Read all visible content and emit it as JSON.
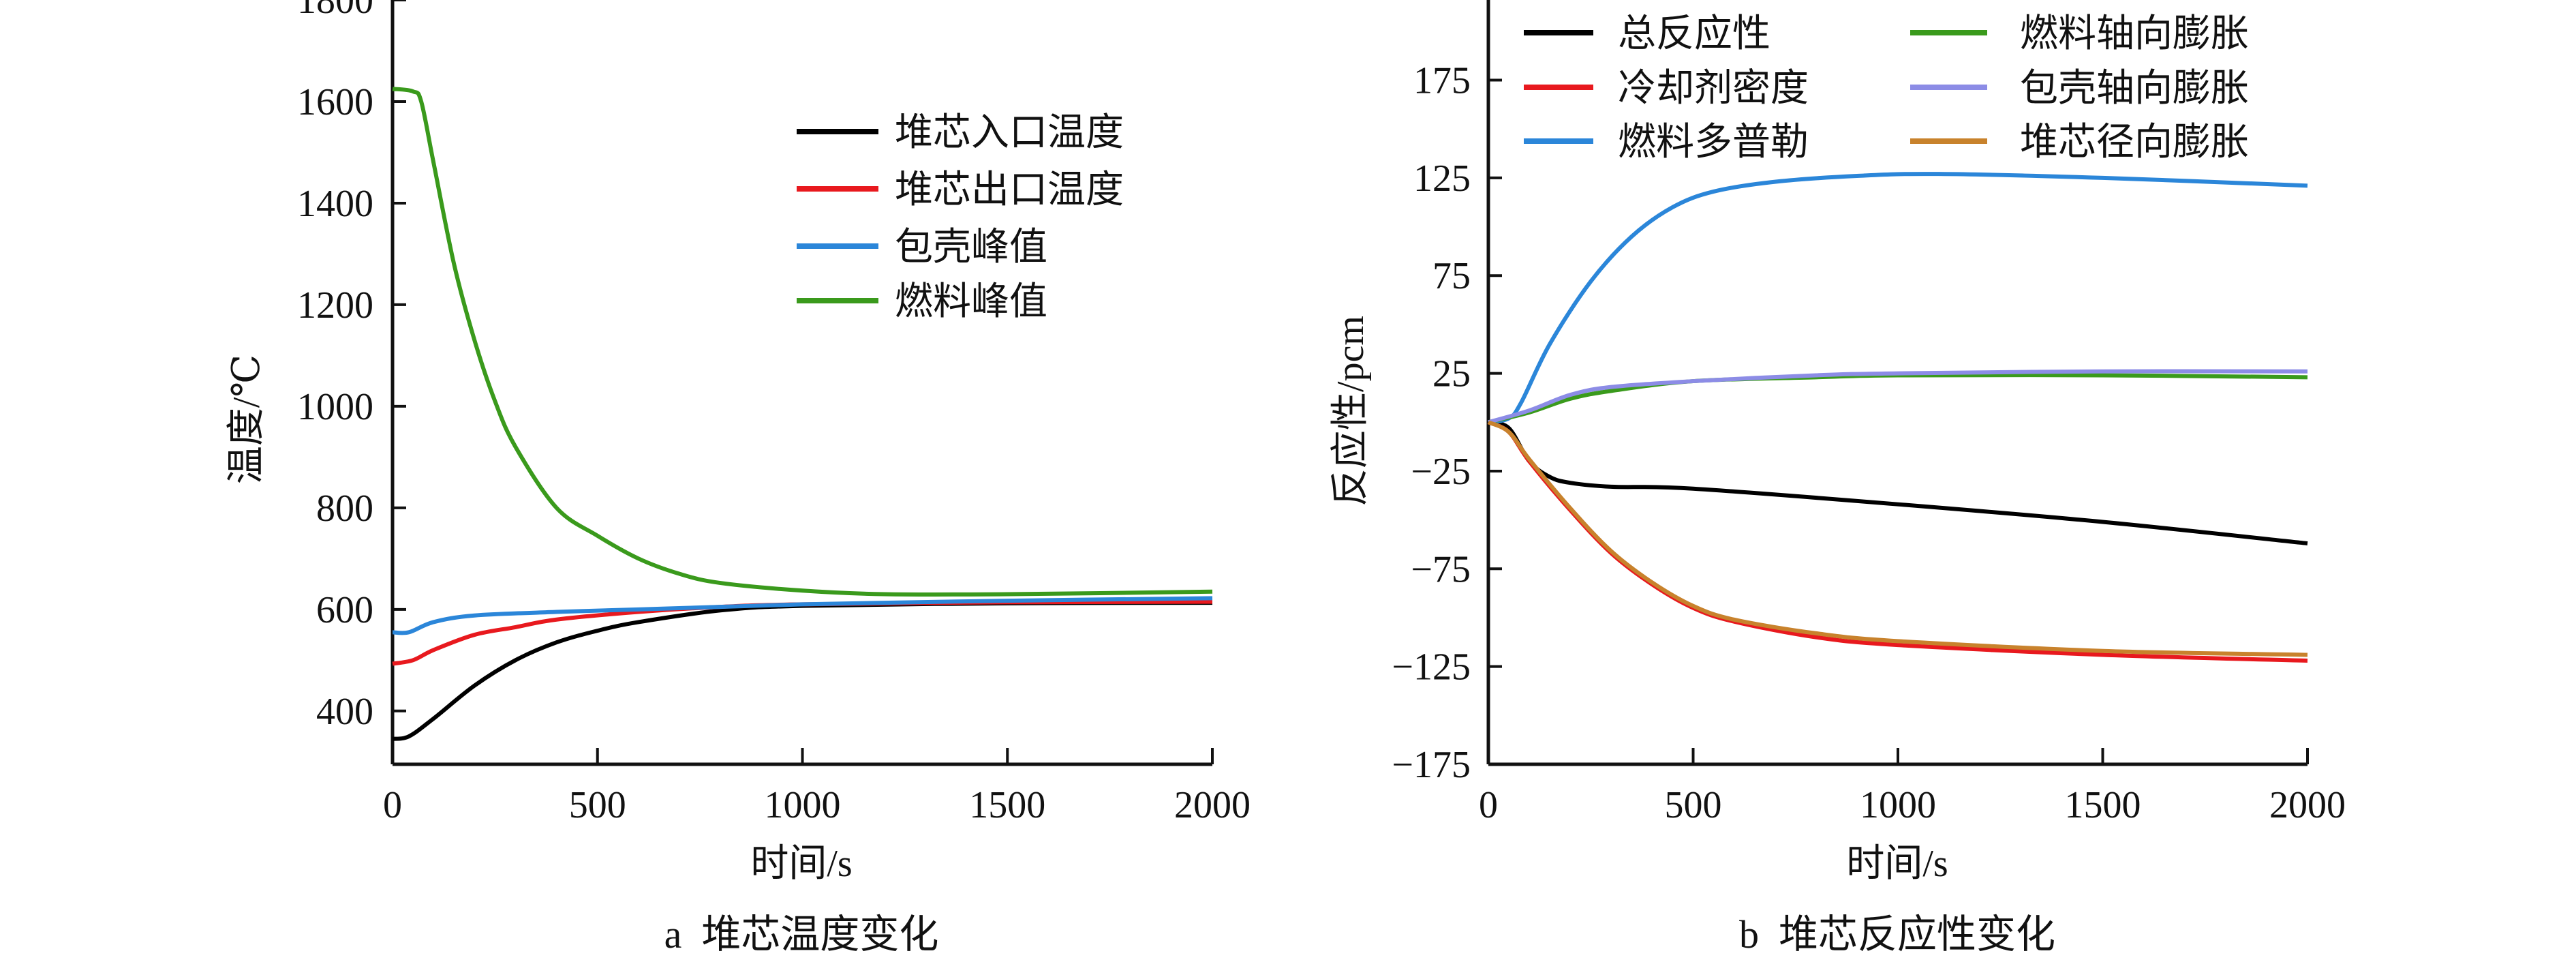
{
  "chart_data": [
    {
      "type": "line",
      "caption": "a  堆芯温度变化",
      "xlabel": "时间/s",
      "ylabel": "温度/℃",
      "xlim": [
        0,
        2000
      ],
      "ylim": [
        295,
        1800
      ],
      "xticks": [
        0,
        500,
        1000,
        1500,
        2000
      ],
      "yticks": [
        400,
        600,
        800,
        1000,
        1200,
        1400,
        1600,
        1800
      ],
      "legend_position": "top-right",
      "series": [
        {
          "name": "堆芯入口温度",
          "color": "#000000",
          "x": [
            0,
            40,
            100,
            200,
            300,
            400,
            500,
            600,
            800,
            1000,
            1500,
            2000
          ],
          "y": [
            345,
            350,
            385,
            450,
            500,
            535,
            558,
            575,
            598,
            607,
            612,
            613
          ]
        },
        {
          "name": "堆芯出口温度",
          "color": "#e8191e",
          "x": [
            0,
            50,
            100,
            200,
            300,
            400,
            600,
            800,
            1000,
            1500,
            2000
          ],
          "y": [
            493,
            500,
            520,
            550,
            565,
            580,
            595,
            605,
            610,
            614,
            615
          ]
        },
        {
          "name": "包壳峰值",
          "color": "#2b86d9",
          "x": [
            0,
            40,
            100,
            200,
            400,
            600,
            1000,
            1500,
            2000
          ],
          "y": [
            555,
            555,
            575,
            588,
            595,
            600,
            610,
            617,
            622
          ]
        },
        {
          "name": "燃料峰值",
          "color": "#3a9a1c",
          "x": [
            0,
            50,
            70,
            100,
            150,
            200,
            250,
            300,
            400,
            500,
            600,
            700,
            800,
            1000,
            1200,
            1500,
            2000
          ],
          "y": [
            1625,
            1620,
            1600,
            1480,
            1280,
            1130,
            1010,
            920,
            800,
            745,
            700,
            670,
            652,
            637,
            630,
            630,
            635
          ]
        }
      ]
    },
    {
      "type": "line",
      "caption": "b  堆芯反应性变化",
      "xlabel": "时间/s",
      "ylabel": "反应性/pcm",
      "xlim": [
        0,
        2000
      ],
      "ylim": [
        -175,
        216
      ],
      "xticks": [
        0,
        500,
        1000,
        1500,
        2000
      ],
      "yticks": [
        -175,
        -125,
        -75,
        -25,
        25,
        75,
        125,
        175
      ],
      "ytick_labels": [
        "−175",
        "−125",
        "−75",
        "−25",
        "25",
        "75",
        "125",
        "175"
      ],
      "legend_position": "top",
      "series": [
        {
          "name": "总反应性",
          "color": "#000000",
          "x": [
            0,
            50,
            100,
            150,
            200,
            300,
            500,
            1000,
            1500,
            2000
          ],
          "y": [
            0,
            -3,
            -20,
            -28,
            -31,
            -33,
            -34,
            -42,
            -51,
            -62
          ]
        },
        {
          "name": "冷却剂密度",
          "color": "#e8191e",
          "x": [
            0,
            50,
            100,
            200,
            300,
            400,
            500,
            600,
            800,
            1000,
            1500,
            2000
          ],
          "y": [
            0,
            -5,
            -20,
            -45,
            -67,
            -83,
            -95,
            -102,
            -110,
            -114,
            -119,
            -122
          ]
        },
        {
          "name": "燃料多普勒",
          "color": "#2b86d9",
          "x": [
            0,
            50,
            80,
            150,
            250,
            350,
            450,
            550,
            700,
            900,
            1100,
            1500,
            2000
          ],
          "y": [
            0,
            2,
            10,
            40,
            72,
            95,
            110,
            118,
            123,
            126,
            127,
            125,
            121
          ]
        },
        {
          "name": "燃料轴向膨胀",
          "color": "#3a9a1c",
          "x": [
            0,
            100,
            200,
            300,
            500,
            800,
            1000,
            1500,
            2000
          ],
          "y": [
            0,
            5,
            12,
            16,
            21,
            23,
            24,
            24,
            23
          ]
        },
        {
          "name": "包壳轴向膨胀",
          "color": "#8c8ce6",
          "x": [
            0,
            100,
            200,
            300,
            500,
            800,
            1000,
            1500,
            2000
          ],
          "y": [
            0,
            6,
            14,
            18,
            21,
            24,
            25,
            26,
            26
          ]
        },
        {
          "name": "堆芯径向膨胀",
          "color": "#c8822c",
          "x": [
            0,
            50,
            100,
            200,
            300,
            400,
            500,
            600,
            800,
            1000,
            1500,
            2000
          ],
          "y": [
            0,
            -5,
            -19,
            -44,
            -66,
            -82,
            -94,
            -101,
            -108,
            -112,
            -117,
            -119
          ]
        }
      ]
    }
  ]
}
